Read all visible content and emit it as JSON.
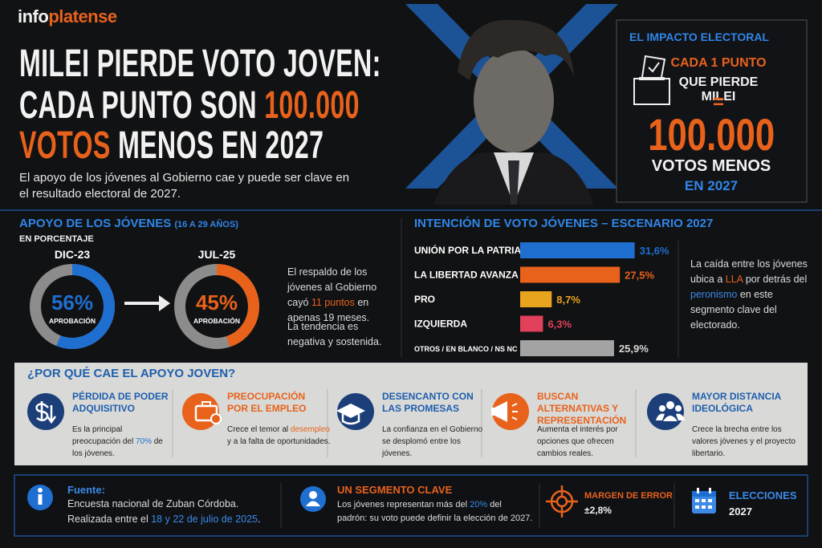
{
  "brand": [
    {
      "text": "info"
    },
    {
      "text": "platense",
      "color": "#e8621c"
    }
  ],
  "headline": [
    [
      {
        "text": "MILEI PIERDE VOTO JOVEN:"
      }
    ],
    [
      {
        "text": "CADA PUNTO SON "
      },
      {
        "text": "100.000",
        "color": "#e8621c"
      }
    ],
    [
      {
        "text": "VOTOS",
        "color": "#e8621c"
      },
      {
        "text": " MENOS EN 2027"
      }
    ]
  ],
  "subtitle": "El apoyo de los jóvenes al Gobierno cae y puede ser clave en el resultado electoral de 2027.",
  "impact": {
    "title": "EL IMPACTO ELECTORAL",
    "line1": "CADA 1 PUNTO",
    "line2": "QUE PIERDE MILEI",
    "equals": "=",
    "number": "100.000",
    "line3": "VOTOS MENOS",
    "line4": "EN 2027"
  },
  "chart_data": [
    {
      "type": "donut",
      "title": "APOYO DE LOS JÓVENES",
      "title_note": "(16 A 29 AÑOS)",
      "subtitle": "EN PORCENTAJE",
      "categories": [
        "DIC-23",
        "JUL-25"
      ],
      "values": [
        56,
        45
      ],
      "value_labels": [
        "56%",
        "45%"
      ],
      "inner_labels": [
        "APROBACIÓN",
        "APROBACIÓN"
      ],
      "colors": [
        "#1f6fd0",
        "#e8621c"
      ],
      "track_color": "#8c8c8c",
      "note": [
        {
          "text": "El respaldo de los jóvenes al Gobierno cayó "
        },
        {
          "text": "11 puntos",
          "color": "#e8621c"
        },
        {
          "text": " en apenas 19 meses."
        }
      ],
      "note2": "La tendencia es negativa y sostenida."
    },
    {
      "type": "bar",
      "orientation": "horizontal",
      "title": "INTENCIÓN DE VOTO JÓVENES – ESCENARIO 2027",
      "categories": [
        "UNIÓN POR LA PATRIA",
        "LA LIBERTAD AVANZA",
        "PRO",
        "IZQUIERDA",
        "OTROS / EN BLANCO / NS NC"
      ],
      "values": [
        31.6,
        27.5,
        8.7,
        6.3,
        25.9
      ],
      "value_labels": [
        "31,6%",
        "27,5%",
        "8,7%",
        "6,3%",
        "25,9%"
      ],
      "colors": [
        "#1f6fd0",
        "#e8621c",
        "#e8a41c",
        "#e0405a",
        "#a3a3a3"
      ],
      "xlim": [
        0,
        33
      ],
      "note": [
        {
          "text": "La caída entre los jóvenes ubica a "
        },
        {
          "text": "LLA",
          "color": "#e8621c"
        },
        {
          "text": " por detrás del "
        },
        {
          "text": "peronismo",
          "color": "#3b8ae6"
        },
        {
          "text": " en este segmento clave del electorado."
        }
      ]
    }
  ],
  "why": {
    "title": "¿POR QUÉ CAE EL APOYO JOVEN?",
    "items": [
      {
        "title": "PÉRDIDA DE PODER ADQUISITIVO",
        "color": "#1c3f7a",
        "text": [
          {
            "text": "Es la principal preocupación del "
          },
          {
            "text": "70%",
            "color": "#1f6fd0"
          },
          {
            "text": " de los jóvenes."
          }
        ]
      },
      {
        "title": "PREOCUPACIÓN POR EL EMPLEO",
        "color": "#e8621c",
        "text": [
          {
            "text": "Crece el temor al "
          },
          {
            "text": "desempleo",
            "color": "#e8621c"
          },
          {
            "text": " y a la falta de oportunidades."
          }
        ]
      },
      {
        "title": "DESENCANTO CON LAS PROMESAS",
        "color": "#1c3f7a",
        "text": [
          {
            "text": "La confianza en el Gobierno se desplomó entre los jóvenes."
          }
        ]
      },
      {
        "title": "BUSCAN ALTERNATIVAS Y REPRESENTACIÓN",
        "color": "#e8621c",
        "text": [
          {
            "text": "Aumenta el interés por opciones que ofrecen cambios reales."
          }
        ]
      },
      {
        "title": "MAYOR DISTANCIA IDEOLÓGICA",
        "color": "#1c3f7a",
        "text": [
          {
            "text": "Crece la brecha entre los valores jóvenes y el proyecto libertario."
          }
        ]
      }
    ]
  },
  "footer": {
    "source": {
      "title": "Fuente:",
      "text": [
        {
          "text": "Encuesta nacional de Zuban Córdoba. Realizada entre el "
        },
        {
          "text": "18 y 22 de julio de 2025",
          "color": "#3b8ae6"
        },
        {
          "text": "."
        }
      ]
    },
    "segment": {
      "title": "UN SEGMENTO CLAVE",
      "text": [
        {
          "text": "Los jóvenes representan más del "
        },
        {
          "text": "20%",
          "color": "#3b8ae6"
        },
        {
          "text": " del padrón: su voto puede definir la elección de 2027."
        }
      ]
    },
    "margin": {
      "title": "MARGEN DE ERROR",
      "value": "±2,8%"
    },
    "elections": {
      "title": "ELECCIONES",
      "value": "2027"
    }
  }
}
